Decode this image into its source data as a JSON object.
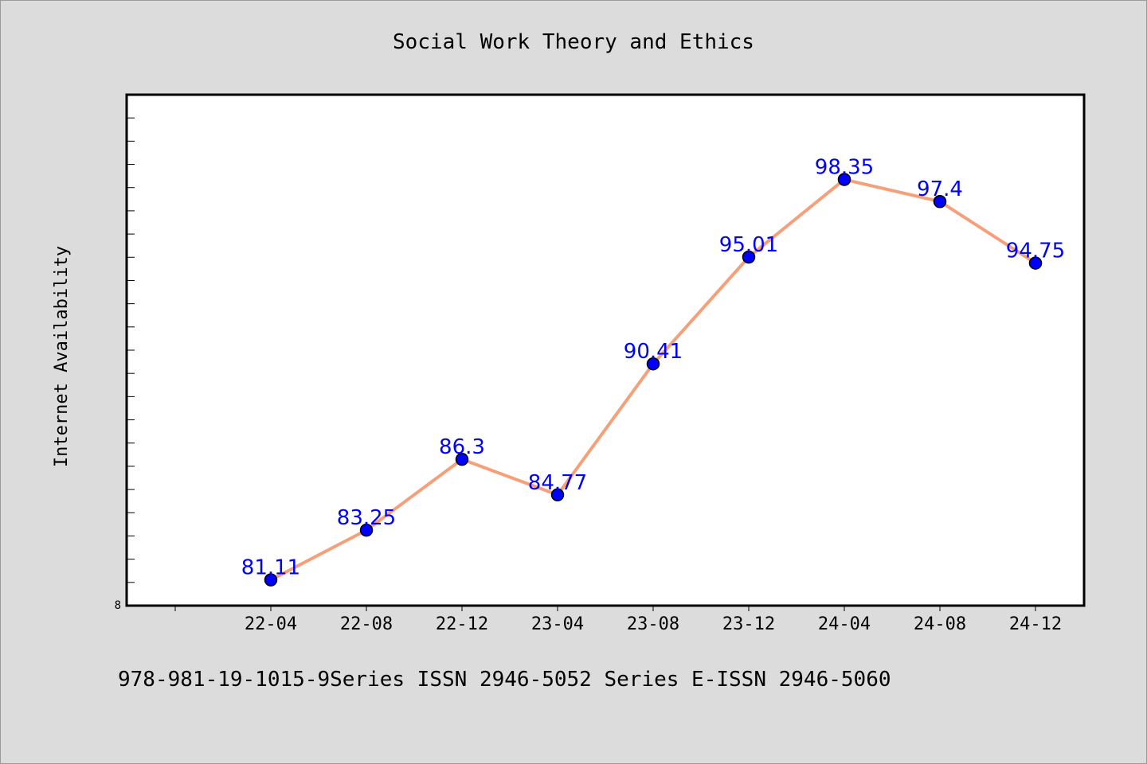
{
  "chart_data": {
    "type": "line",
    "title": "Social Work Theory and Ethics",
    "xlabel": "",
    "ylabel": "Internet Availability",
    "categories": [
      "22-04",
      "22-08",
      "22-12",
      "23-04",
      "23-08",
      "23-12",
      "24-04",
      "24-08",
      "24-12"
    ],
    "series": [
      {
        "values": [
          81.11,
          83.25,
          86.3,
          84.77,
          90.41,
          95.01,
          98.35,
          97.4,
          94.75
        ],
        "color": "#f5a07a",
        "marker_color": "#0000ff"
      }
    ],
    "data_labels": [
      "81.11",
      "83.25",
      "86.3",
      "84.77",
      "90.41",
      "95.01",
      "98.35",
      "97.4",
      "94.75"
    ],
    "ylim": [
      80,
      102
    ],
    "y_tick_label": "8",
    "grid": false,
    "legend": "none"
  },
  "footer": {
    "text": "978-981-19-1015-9Series ISSN 2946-5052 Series E-ISSN 2946-5060"
  },
  "colors": {
    "background": "#dcdcdc",
    "plot_background": "#ffffff",
    "line": "#f5a07a",
    "marker": "#0000ff",
    "label": "#0000ff"
  }
}
